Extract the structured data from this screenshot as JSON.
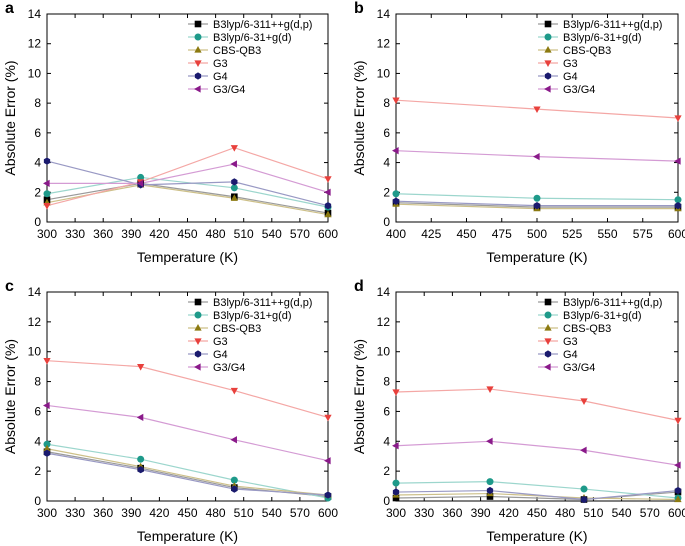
{
  "chart_data": [
    {
      "panel_label": "a",
      "type": "line",
      "xlabel": "Temperature (K)",
      "ylabel": "Absolute Error (%)",
      "xlim": [
        300,
        600
      ],
      "ylim": [
        0,
        14
      ],
      "xticks": [
        300,
        330,
        360,
        390,
        420,
        450,
        480,
        510,
        540,
        570,
        600
      ],
      "yticks": [
        0,
        2,
        4,
        6,
        8,
        10,
        12,
        14
      ],
      "legend_position": "top-right",
      "series": [
        {
          "name": "B3lyp/6-311++g(d,p)",
          "marker": "square",
          "color": "#000000",
          "line_color": "#9a9a9a",
          "x": [
            300,
            400,
            500,
            600
          ],
          "values": [
            1.5,
            2.6,
            1.7,
            0.6
          ]
        },
        {
          "name": "B3lyp/6-31+g(d)",
          "marker": "circle",
          "color": "#1e9a8a",
          "line_color": "#9cd6cd",
          "x": [
            300,
            400,
            500,
            600
          ],
          "values": [
            1.9,
            3.0,
            2.3,
            1.0
          ]
        },
        {
          "name": "CBS-QB3",
          "marker": "triangle-up",
          "color": "#8c7a10",
          "line_color": "#cdc089",
          "x": [
            300,
            400,
            500,
            600
          ],
          "values": [
            1.3,
            2.5,
            1.6,
            0.5
          ]
        },
        {
          "name": "G3",
          "marker": "triangle-down",
          "color": "#e8403c",
          "line_color": "#f4a7a5",
          "x": [
            300,
            400,
            500,
            600
          ],
          "values": [
            1.1,
            2.7,
            5.0,
            2.9
          ]
        },
        {
          "name": "G4",
          "marker": "hexagon",
          "color": "#1a1a6e",
          "line_color": "#9999c4",
          "x": [
            300,
            400,
            500,
            600
          ],
          "values": [
            4.1,
            2.5,
            2.7,
            1.1
          ]
        },
        {
          "name": "G3/G4",
          "marker": "triangle-left",
          "color": "#8a1a8a",
          "line_color": "#d49bd4",
          "x": [
            300,
            400,
            500,
            600
          ],
          "values": [
            2.6,
            2.6,
            3.9,
            2.0
          ]
        }
      ]
    },
    {
      "panel_label": "b",
      "type": "line",
      "xlabel": "Temperature (K)",
      "ylabel": "Absolute Error (%)",
      "xlim": [
        400,
        600
      ],
      "ylim": [
        0,
        14
      ],
      "xticks": [
        400,
        425,
        450,
        475,
        500,
        525,
        550,
        575,
        600
      ],
      "yticks": [
        0,
        2,
        4,
        6,
        8,
        10,
        12,
        14
      ],
      "legend_position": "top-right",
      "series": [
        {
          "name": "B3lyp/6-311++g(d,p)",
          "marker": "square",
          "color": "#000000",
          "line_color": "#9a9a9a",
          "x": [
            400,
            500,
            600
          ],
          "values": [
            1.3,
            1.0,
            1.0
          ]
        },
        {
          "name": "B3lyp/6-31+g(d)",
          "marker": "circle",
          "color": "#1e9a8a",
          "line_color": "#9cd6cd",
          "x": [
            400,
            500,
            600
          ],
          "values": [
            1.9,
            1.6,
            1.5
          ]
        },
        {
          "name": "CBS-QB3",
          "marker": "triangle-up",
          "color": "#8c7a10",
          "line_color": "#cdc089",
          "x": [
            400,
            500,
            600
          ],
          "values": [
            1.2,
            0.9,
            0.9
          ]
        },
        {
          "name": "G3",
          "marker": "triangle-down",
          "color": "#e8403c",
          "line_color": "#f4a7a5",
          "x": [
            400,
            500,
            600
          ],
          "values": [
            8.2,
            7.6,
            7.0
          ]
        },
        {
          "name": "G4",
          "marker": "hexagon",
          "color": "#1a1a6e",
          "line_color": "#9999c4",
          "x": [
            400,
            500,
            600
          ],
          "values": [
            1.4,
            1.1,
            1.1
          ]
        },
        {
          "name": "G3/G4",
          "marker": "triangle-left",
          "color": "#8a1a8a",
          "line_color": "#d49bd4",
          "x": [
            400,
            500,
            600
          ],
          "values": [
            4.8,
            4.4,
            4.1
          ]
        }
      ]
    },
    {
      "panel_label": "c",
      "type": "line",
      "xlabel": "Temperature (K)",
      "ylabel": "Absolute Error (%)",
      "xlim": [
        300,
        600
      ],
      "ylim": [
        0,
        14
      ],
      "xticks": [
        300,
        330,
        360,
        390,
        420,
        450,
        480,
        510,
        540,
        570,
        600
      ],
      "yticks": [
        0,
        2,
        4,
        6,
        8,
        10,
        12,
        14
      ],
      "legend_position": "top-right",
      "series": [
        {
          "name": "B3lyp/6-311++g(d,p)",
          "marker": "square",
          "color": "#000000",
          "line_color": "#9a9a9a",
          "x": [
            300,
            400,
            500,
            600
          ],
          "values": [
            3.3,
            2.2,
            0.9,
            0.3
          ]
        },
        {
          "name": "B3lyp/6-31+g(d)",
          "marker": "circle",
          "color": "#1e9a8a",
          "line_color": "#9cd6cd",
          "x": [
            300,
            400,
            500,
            600
          ],
          "values": [
            3.8,
            2.8,
            1.4,
            0.2
          ]
        },
        {
          "name": "CBS-QB3",
          "marker": "triangle-up",
          "color": "#8c7a10",
          "line_color": "#cdc089",
          "x": [
            300,
            400,
            500,
            600
          ],
          "values": [
            3.5,
            2.3,
            1.0,
            0.4
          ]
        },
        {
          "name": "G3",
          "marker": "triangle-down",
          "color": "#e8403c",
          "line_color": "#f4a7a5",
          "x": [
            300,
            400,
            500,
            600
          ],
          "values": [
            9.4,
            9.0,
            7.4,
            5.6
          ]
        },
        {
          "name": "G4",
          "marker": "hexagon",
          "color": "#1a1a6e",
          "line_color": "#9999c4",
          "x": [
            300,
            400,
            500,
            600
          ],
          "values": [
            3.2,
            2.1,
            0.8,
            0.4
          ]
        },
        {
          "name": "G3/G4",
          "marker": "triangle-left",
          "color": "#8a1a8a",
          "line_color": "#d49bd4",
          "x": [
            300,
            400,
            500,
            600
          ],
          "values": [
            6.4,
            5.6,
            4.1,
            2.7
          ]
        }
      ]
    },
    {
      "panel_label": "d",
      "type": "line",
      "xlabel": "Temperature (K)",
      "ylabel": "Absolute Error (%)",
      "xlim": [
        300,
        600
      ],
      "ylim": [
        0,
        14
      ],
      "xticks": [
        300,
        330,
        360,
        390,
        420,
        450,
        480,
        510,
        540,
        570,
        600
      ],
      "yticks": [
        0,
        2,
        4,
        6,
        8,
        10,
        12,
        14
      ],
      "legend_position": "top-right",
      "series": [
        {
          "name": "B3lyp/6-311++g(d,p)",
          "marker": "square",
          "color": "#000000",
          "line_color": "#9a9a9a",
          "x": [
            300,
            400,
            500,
            600
          ],
          "values": [
            0.2,
            0.3,
            0.1,
            0.6
          ]
        },
        {
          "name": "B3lyp/6-31+g(d)",
          "marker": "circle",
          "color": "#1e9a8a",
          "line_color": "#9cd6cd",
          "x": [
            300,
            400,
            500,
            600
          ],
          "values": [
            1.2,
            1.3,
            0.8,
            0.2
          ]
        },
        {
          "name": "CBS-QB3",
          "marker": "triangle-up",
          "color": "#8c7a10",
          "line_color": "#cdc089",
          "x": [
            300,
            400,
            500,
            600
          ],
          "values": [
            0.4,
            0.5,
            0.2,
            0.1
          ]
        },
        {
          "name": "G3",
          "marker": "triangle-down",
          "color": "#e8403c",
          "line_color": "#f4a7a5",
          "x": [
            300,
            400,
            500,
            600
          ],
          "values": [
            7.3,
            7.5,
            6.7,
            5.4
          ]
        },
        {
          "name": "G4",
          "marker": "hexagon",
          "color": "#1a1a6e",
          "line_color": "#9999c4",
          "x": [
            300,
            400,
            500,
            600
          ],
          "values": [
            0.6,
            0.7,
            0.1,
            0.7
          ]
        },
        {
          "name": "G3/G4",
          "marker": "triangle-left",
          "color": "#8a1a8a",
          "line_color": "#d49bd4",
          "x": [
            300,
            400,
            500,
            600
          ],
          "values": [
            3.7,
            4.0,
            3.4,
            2.4
          ]
        }
      ]
    }
  ]
}
